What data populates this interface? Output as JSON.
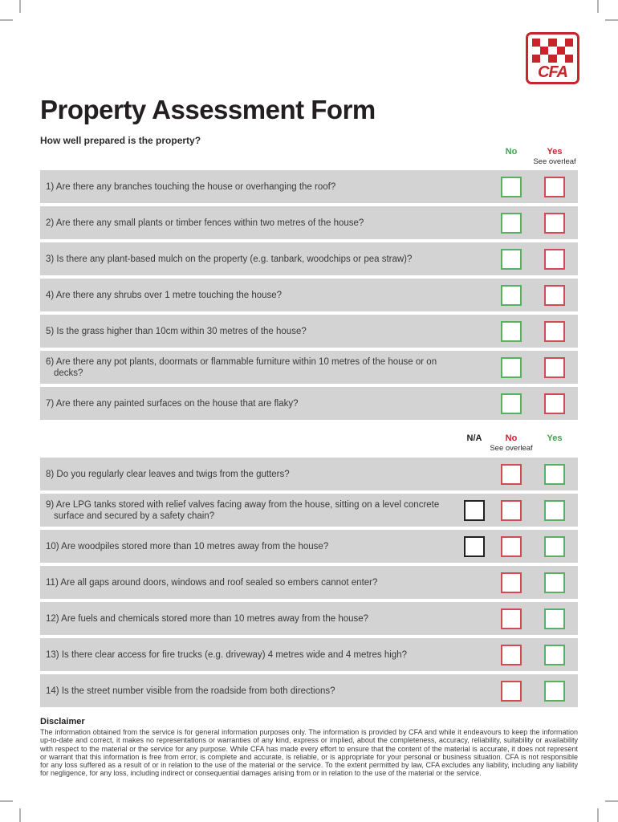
{
  "logo": {
    "text": "CFA",
    "checker_rows": 3,
    "checker_cols": 5
  },
  "title": "Property Assessment Form",
  "subtitle": "How well prepared is the property?",
  "colors": {
    "cfa_red": "#c9242b",
    "box_red": "#d14b55",
    "label_green": "#3fa548",
    "box_green": "#58b160",
    "na_black": "#222222",
    "row_gray": "#d3d3d3"
  },
  "section1": {
    "headers": {
      "no": "No",
      "yes": "Yes",
      "see_overleaf": "See overleaf"
    },
    "questions": [
      {
        "text": "1) Are there any branches touching the house or overhanging the roof?"
      },
      {
        "text": "2) Are there any small plants or timber fences within two metres of the house?"
      },
      {
        "text": "3) Is there any plant-based mulch on the property (e.g. tanbark, woodchips or pea straw)?"
      },
      {
        "text": "4) Are there any shrubs over 1 metre touching the house?"
      },
      {
        "text": "5) Is the grass higher than 10cm within 30 metres of the house?"
      },
      {
        "text": "6) Are there any pot plants, doormats or flammable furniture within 10 metres of the house or on decks?"
      },
      {
        "text": "7) Are there any painted surfaces on the house that are flaky?"
      }
    ]
  },
  "section2": {
    "headers": {
      "na": "N/A",
      "no": "No",
      "yes": "Yes",
      "see_overleaf": "See overleaf"
    },
    "questions": [
      {
        "text": "8) Do you regularly clear leaves and twigs from the gutters?",
        "na": false
      },
      {
        "text": "9) Are LPG tanks stored with relief valves facing away from the house, sitting on a level concrete surface and secured by a safety chain?",
        "na": true
      },
      {
        "text": "10) Are woodpiles stored more than 10 metres away from the house?",
        "na": true
      },
      {
        "text": "11) Are all gaps around doors, windows and roof sealed so embers cannot enter?",
        "na": false
      },
      {
        "text": "12) Are fuels and chemicals stored more than 10 metres away from the house?",
        "na": false
      },
      {
        "text": "13) Is there clear access for fire trucks (e.g. driveway) 4 metres wide and 4 metres high?",
        "na": false
      },
      {
        "text": "14) Is the street number visible from the roadside from both directions?",
        "na": false
      }
    ]
  },
  "disclaimer": {
    "heading": "Disclaimer",
    "body": "The information obtained from the service is for general information purposes only. The information is provided by CFA and while it endeavours to keep the information up-to-date and correct, it makes no representations or warranties of any kind, express or implied, about the completeness, accuracy, reliability, suitability or availability with respect to the material or the service for any purpose. While CFA has made every effort to ensure that the content of the material is accurate, it does not represent or warrant that this information is free from error, is complete and accurate, is reliable, or is appropriate for your personal or business situation. CFA is not responsible for any loss suffered as a result of or in relation to the use of the material or the service. To the extent permitted by law, CFA excludes any liability, including any liability for negligence, for any loss, including indirect or consequential damages arising from or in relation to the use of the material or the service."
  }
}
